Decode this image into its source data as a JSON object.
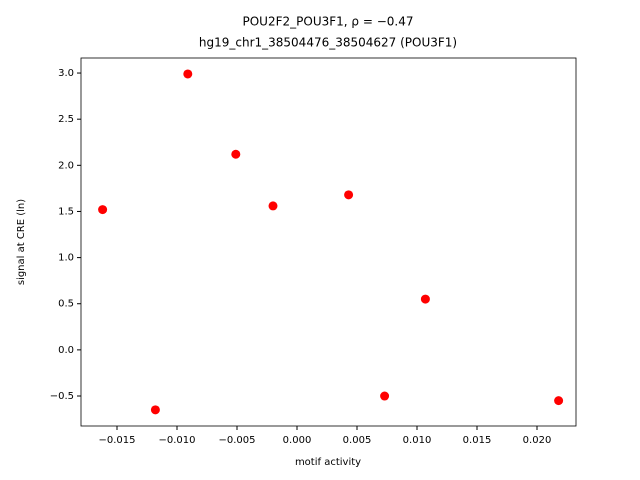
{
  "chart_data": {
    "type": "scatter",
    "title": "POU2F2_POU3F1, ρ = −0.47",
    "subtitle": "hg19_chr1_38504476_38504627 (POU3F1)",
    "x_label": "motif activity",
    "y_label": "signal at CRE (ln)",
    "color": "#ff0000",
    "x": [
      -0.0162,
      -0.0118,
      -0.0091,
      -0.0051,
      -0.002,
      0.0043,
      0.0073,
      0.0107,
      0.0218
    ],
    "values": [
      1.52,
      -0.65,
      2.99,
      2.12,
      1.56,
      1.68,
      -0.5,
      0.55,
      -0.55
    ],
    "xlim": [
      -0.018,
      0.02325
    ],
    "ylim": [
      -0.825,
      3.163
    ],
    "xticks": [
      {
        "value": -0.015,
        "label": "−0.015"
      },
      {
        "value": -0.01,
        "label": "−0.010"
      },
      {
        "value": -0.005,
        "label": "−0.005"
      },
      {
        "value": 0,
        "label": "0.000"
      },
      {
        "value": 0.005,
        "label": "0.005"
      },
      {
        "value": 0.01,
        "label": "0.010"
      },
      {
        "value": 0.015,
        "label": "0.015"
      },
      {
        "value": 0.02,
        "label": "0.020"
      }
    ],
    "yticks": [
      {
        "value": -0.5,
        "label": "−0.5"
      },
      {
        "value": 0,
        "label": "0.0"
      },
      {
        "value": 0.5,
        "label": "0.5"
      },
      {
        "value": 1,
        "label": "1.0"
      },
      {
        "value": 1.5,
        "label": "1.5"
      },
      {
        "value": 2,
        "label": "2.0"
      },
      {
        "value": 2.5,
        "label": "2.5"
      },
      {
        "value": 3,
        "label": "3.0"
      }
    ]
  }
}
